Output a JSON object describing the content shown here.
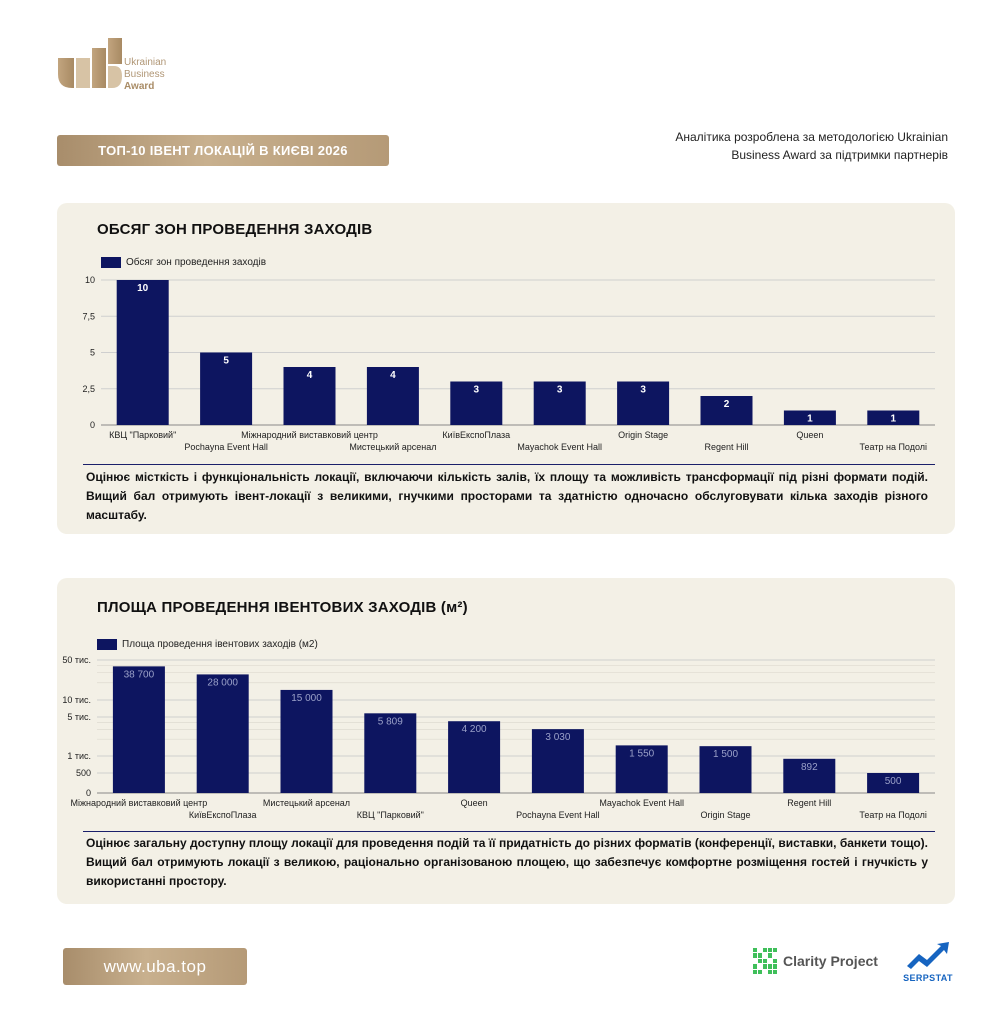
{
  "brand": {
    "logo_line1": "Ukrainian",
    "logo_line2": "Business",
    "logo_line3": "Award",
    "gold_color": "#b59a77"
  },
  "banner": {
    "title": "ТОП-10 ІВЕНТ ЛОКАЦІЙ В КИЄВІ 2026"
  },
  "note": {
    "line1": "Аналітика розроблена за методологією Ukrainian",
    "line2": "Business Award за підтримки партнерів"
  },
  "section1": {
    "title": "ОБСЯГ ЗОН ПРОВЕДЕННЯ ЗАХОДІВ",
    "description": "Оцінює місткість і функціональність локації, включаючи кількість залів, їх площу та можливість трансформації під різні формати подій. Вищий бал отримують івент-локації з великими, гнучкими просторами та здатністю одночасно обслуговувати кілька заходів різного масштабу."
  },
  "section2": {
    "title": "ПЛОЩА ПРОВЕДЕННЯ ІВЕНТОВИХ ЗАХОДІВ (м²)",
    "description": "Оцінює загальну доступну площу локації для проведення подій та її придатність до різних форматів (конференції, виставки, банкети тощо). Вищий бал отримують локації з великою, раціонально організованою площею, що забезпечує комфортне розміщення гостей і гнучкість у використанні простору."
  },
  "chart_data": [
    {
      "type": "bar",
      "title": "",
      "legend": "Обсяг зон проведення заходів",
      "legend_position": "top-left",
      "bar_color": "#0d1560",
      "categories": [
        "КВЦ \"Парковий\"",
        "Pochayna Event Hall",
        "Міжнародний виставковий центр",
        "Мистецький арсенал",
        "КиївЕкспоПлаза",
        "Mayachok Event Hall",
        "Origin Stage",
        "Regent Hill",
        "Queen",
        "Театр на Подолі"
      ],
      "values": [
        10,
        5,
        4,
        4,
        3,
        3,
        3,
        2,
        1,
        1
      ],
      "value_labels": [
        "10",
        "5",
        "4",
        "4",
        "3",
        "3",
        "3",
        "2",
        "1",
        "1"
      ],
      "ylim": [
        0,
        10
      ],
      "yticks": [
        0,
        2.5,
        5,
        7.5,
        10
      ],
      "ytick_labels": [
        "0",
        "2,5",
        "5",
        "7,5",
        "10"
      ],
      "grid": true
    },
    {
      "type": "bar",
      "title": "",
      "legend": "Площа проведення івентових заходів (м2)",
      "legend_position": "top-left",
      "bar_color": "#0d1560",
      "yscale": "log",
      "categories": [
        "Міжнародний виставковий центр",
        "КиївЕкспоПлаза",
        "Мистецький арсенал",
        "КВЦ \"Парковий\"",
        "Queen",
        "Pochayna Event Hall",
        "Mayachok Event Hall",
        "Origin Stage",
        "Regent Hill",
        "Театр на Подолі"
      ],
      "values": [
        38700,
        28000,
        15000,
        5809,
        4200,
        3030,
        1550,
        1500,
        892,
        500
      ],
      "value_labels": [
        "38 700",
        "28 000",
        "15 000",
        "5 809",
        "4 200",
        "3 030",
        "1 550",
        "1 500",
        "892",
        "500"
      ],
      "ylim": [
        0,
        50000
      ],
      "yticks": [
        0,
        500,
        1000,
        5000,
        10000,
        50000
      ],
      "ytick_labels": [
        "0",
        "500",
        "1 тис.",
        "5 тис.",
        "10 тис.",
        "50 тис."
      ],
      "grid": true
    }
  ],
  "footer": {
    "url": "www.uba.top",
    "partner1": "Clarity Project",
    "partner2": "SERPSTAT",
    "partner1_color": "#3fbf5a",
    "partner2_color": "#1664c0"
  }
}
